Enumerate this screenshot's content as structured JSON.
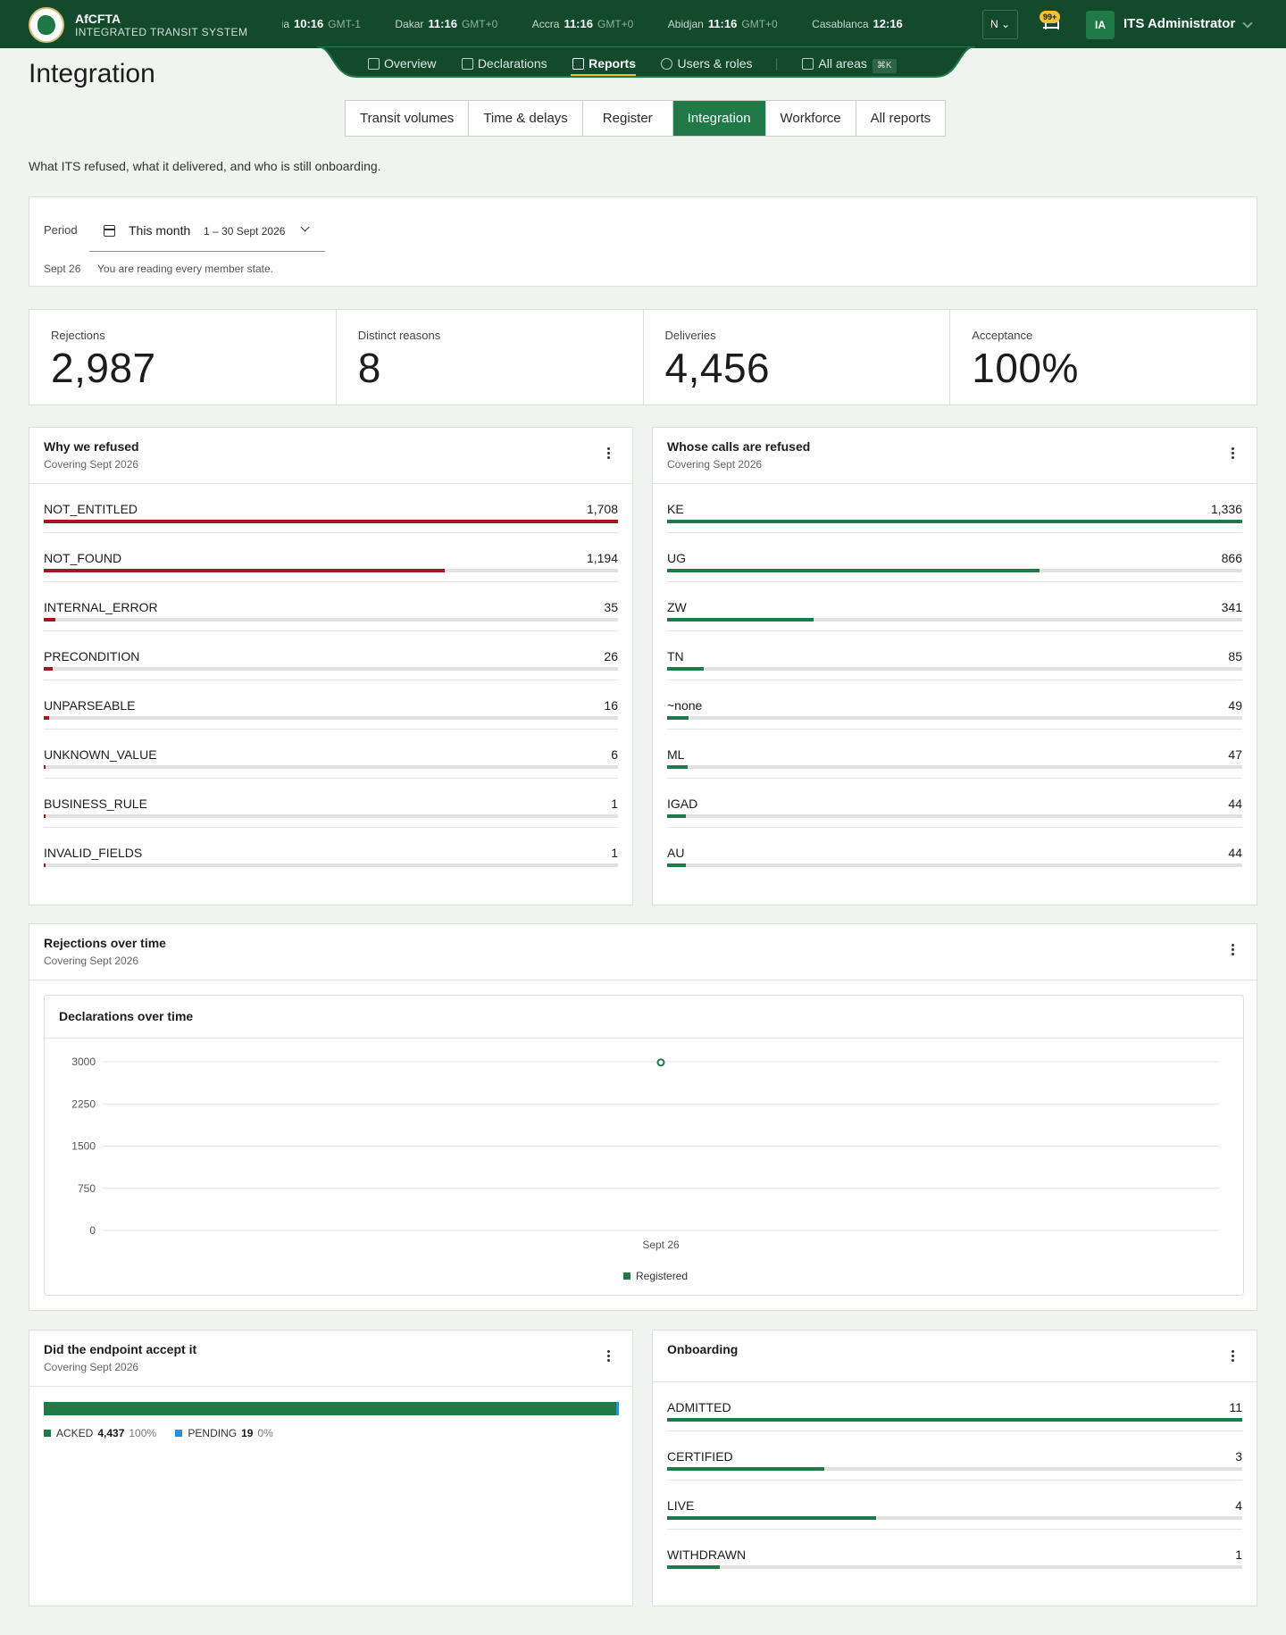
{
  "brand": {
    "name": "AfCFTA",
    "subtitle": "INTEGRATED TRANSIT SYSTEM"
  },
  "clocks": [
    {
      "city": "Praia",
      "time": "10:16",
      "tz": "GMT-1"
    },
    {
      "city": "Dakar",
      "time": "11:16",
      "tz": "GMT+0"
    },
    {
      "city": "Accra",
      "time": "11:16",
      "tz": "GMT+0"
    },
    {
      "city": "Abidjan",
      "time": "11:16",
      "tz": "GMT+0"
    },
    {
      "city": "Casablanca",
      "time": "12:16",
      "tz": ""
    }
  ],
  "language": "N",
  "notifications": {
    "badge": "99+"
  },
  "user": {
    "initials": "IA",
    "name": "ITS Administrator"
  },
  "nav": {
    "items": [
      {
        "label": "Overview",
        "icon": "chart-line-icon"
      },
      {
        "label": "Declarations",
        "icon": "document-icon"
      },
      {
        "label": "Reports",
        "icon": "table-icon"
      },
      {
        "label": "Users & roles",
        "icon": "users-icon"
      }
    ],
    "all_areas": {
      "label": "All areas",
      "shortcut": "⌘K"
    }
  },
  "page": {
    "title": "Integration",
    "intro": "What ITS refused, what it delivered, and who is still onboarding.",
    "tabs": [
      "Transit volumes",
      "Time & delays",
      "Register",
      "Integration",
      "Workforce",
      "All reports"
    ],
    "active_tab": "Integration"
  },
  "period": {
    "label": "Period",
    "selected": "This month",
    "range": "1 – 30 Sept 2026",
    "date_chip": "Sept 26",
    "note": "You are reading every member state."
  },
  "kpis": [
    {
      "label": "Rejections",
      "value": "2,987"
    },
    {
      "label": "Distinct reasons",
      "value": "8"
    },
    {
      "label": "Deliveries",
      "value": "4,456"
    },
    {
      "label": "Acceptance",
      "value": "100%"
    }
  ],
  "refusal_reasons": {
    "title": "Why we refused",
    "subtitle": "Covering Sept 2026",
    "max": 1708,
    "rows": [
      {
        "label": "NOT_ENTITLED",
        "value": 1708,
        "display": "1,708"
      },
      {
        "label": "NOT_FOUND",
        "value": 1194,
        "display": "1,194"
      },
      {
        "label": "INTERNAL_ERROR",
        "value": 35,
        "display": "35"
      },
      {
        "label": "PRECONDITION",
        "value": 26,
        "display": "26"
      },
      {
        "label": "UNPARSEABLE",
        "value": 16,
        "display": "16"
      },
      {
        "label": "UNKNOWN_VALUE",
        "value": 6,
        "display": "6"
      },
      {
        "label": "BUSINESS_RULE",
        "value": 1,
        "display": "1"
      },
      {
        "label": "INVALID_FIELDS",
        "value": 1,
        "display": "1"
      }
    ]
  },
  "refused_callers": {
    "title": "Whose calls are refused",
    "subtitle": "Covering Sept 2026",
    "max": 1336,
    "rows": [
      {
        "label": "KE",
        "value": 1336,
        "display": "1,336"
      },
      {
        "label": "UG",
        "value": 866,
        "display": "866"
      },
      {
        "label": "ZW",
        "value": 341,
        "display": "341"
      },
      {
        "label": "TN",
        "value": 85,
        "display": "85"
      },
      {
        "label": "~none",
        "value": 49,
        "display": "49"
      },
      {
        "label": "ML",
        "value": 47,
        "display": "47"
      },
      {
        "label": "IGAD",
        "value": 44,
        "display": "44"
      },
      {
        "label": "AU",
        "value": 44,
        "display": "44"
      }
    ]
  },
  "rejections_over_time": {
    "title": "Rejections over time",
    "subtitle": "Covering Sept 2026"
  },
  "chart_data": {
    "type": "line",
    "title": "Declarations over time",
    "x": [
      "Sept 26"
    ],
    "series": [
      {
        "name": "Registered",
        "values": [
          2987
        ],
        "color": "#1f7a48"
      }
    ],
    "ylim": [
      0,
      3000
    ],
    "yticks": [
      0,
      750,
      1500,
      2250,
      3000
    ],
    "grid": true,
    "legend": "bottom"
  },
  "acceptance": {
    "title": "Did the endpoint accept it",
    "subtitle": "Covering Sept 2026",
    "segments": [
      {
        "label": "ACKED",
        "count": "4,437",
        "pct": "100%",
        "value": 4437,
        "color": "#1f7a48"
      },
      {
        "label": "PENDING",
        "count": "19",
        "pct": "0%",
        "value": 19,
        "color": "#2e8fd6"
      }
    ]
  },
  "onboarding": {
    "title": "Onboarding",
    "max": 11,
    "rows": [
      {
        "label": "ADMITTED",
        "value": 11,
        "display": "11"
      },
      {
        "label": "CERTIFIED",
        "value": 3,
        "display": "3"
      },
      {
        "label": "LIVE",
        "value": 4,
        "display": "4"
      },
      {
        "label": "WITHDRAWN",
        "value": 1,
        "display": "1"
      }
    ]
  }
}
